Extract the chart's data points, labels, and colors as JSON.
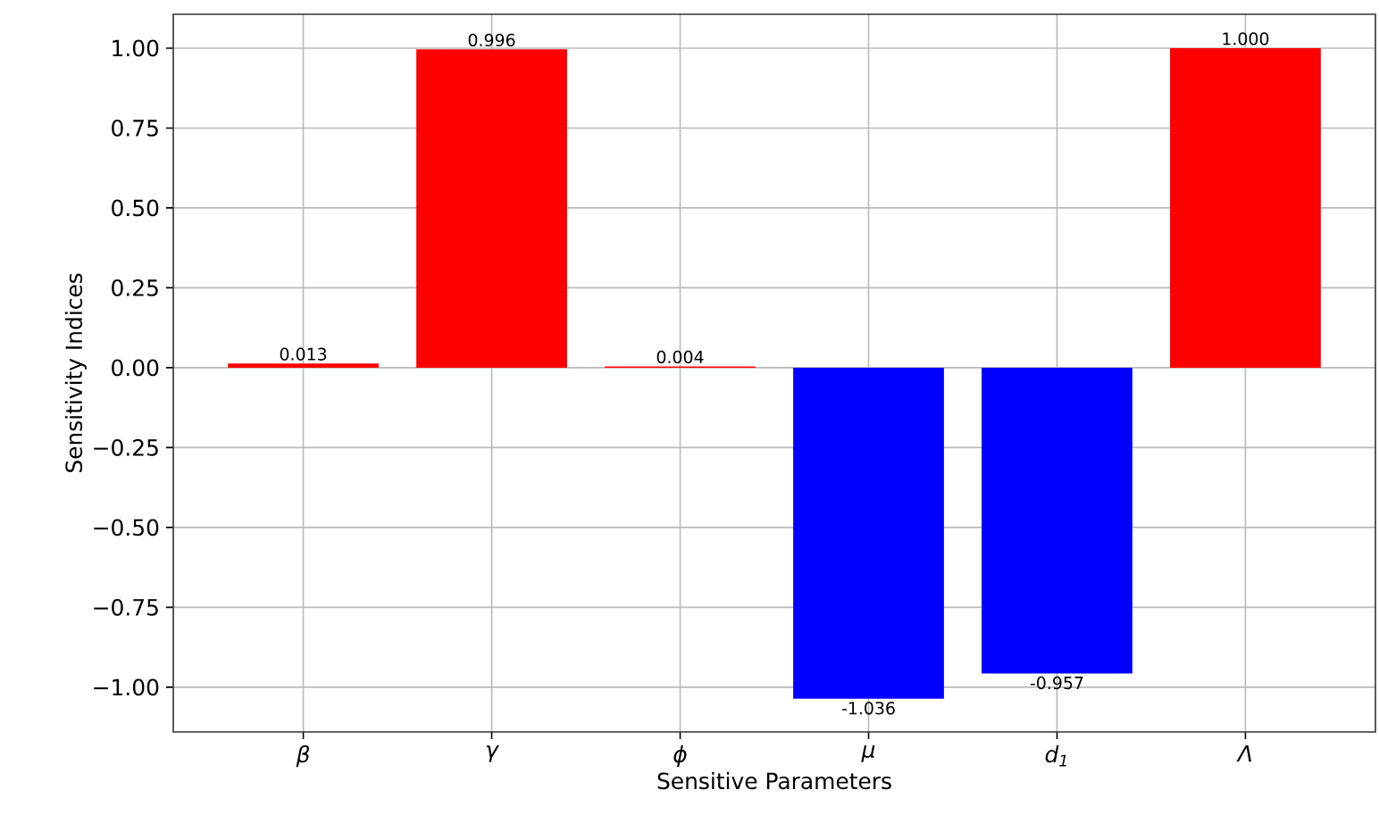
{
  "chart_data": {
    "type": "bar",
    "xlabel": "Sensitive Parameters",
    "ylabel": "Sensitivity Indices",
    "categories": [
      "β",
      "γ",
      "ϕ",
      "μ",
      "d$_{1}$",
      "Λ"
    ],
    "values": [
      0.013,
      0.996,
      0.004,
      -1.036,
      -0.957,
      1.0
    ],
    "value_labels": [
      "0.013",
      "0.996",
      "0.004",
      "-1.036",
      "-0.957",
      "1.000"
    ],
    "colors": [
      "#ff0000",
      "#ff0000",
      "#ff0000",
      "#0000ff",
      "#0000ff",
      "#ff0000"
    ],
    "ylim": [
      -1.14,
      1.106
    ],
    "yticks": [
      {
        "value": -1.0,
        "label": "−1.00"
      },
      {
        "value": -0.75,
        "label": "−0.75"
      },
      {
        "value": -0.5,
        "label": "−0.50"
      },
      {
        "value": -0.25,
        "label": "−0.25"
      },
      {
        "value": 0,
        "label": "0.00"
      },
      {
        "value": 0.25,
        "label": "0.25"
      },
      {
        "value": 0.5,
        "label": "0.50"
      },
      {
        "value": 0.75,
        "label": "0.75"
      },
      {
        "value": 1.0,
        "label": "1.00"
      }
    ],
    "grid": true
  }
}
